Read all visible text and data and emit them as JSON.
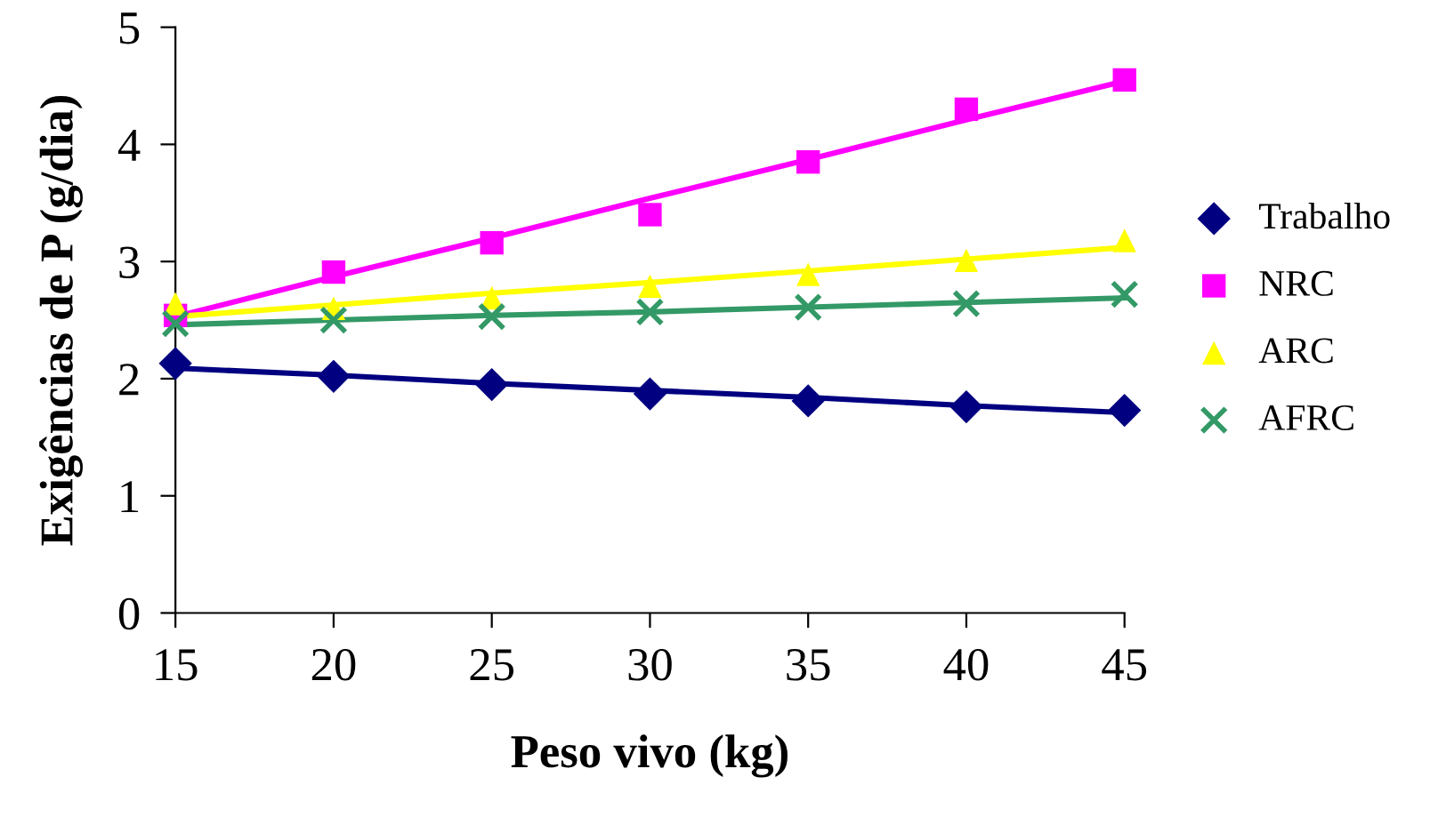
{
  "chart_data": {
    "type": "scatter",
    "xlabel": "Peso vivo (kg)",
    "ylabel": "Exigências de P (g/dia)",
    "x": [
      15,
      20,
      25,
      30,
      35,
      40,
      45
    ],
    "xlim": [
      15,
      45
    ],
    "xticks": [
      15,
      20,
      25,
      30,
      35,
      40,
      45
    ],
    "ylim": [
      0,
      5
    ],
    "yticks": [
      0,
      1,
      2,
      3,
      4,
      5
    ],
    "grid": false,
    "legend": "right",
    "series": [
      {
        "name": "Trabalho",
        "color": "#000080",
        "marker": "diamond",
        "values": [
          2.13,
          2.02,
          1.95,
          1.87,
          1.81,
          1.76,
          1.73
        ]
      },
      {
        "name": "NRC",
        "color": "#ff00ff",
        "marker": "square",
        "values": [
          2.54,
          2.91,
          3.16,
          3.4,
          3.85,
          4.3,
          4.55
        ]
      },
      {
        "name": "ARC",
        "color": "#ffff00",
        "marker": "triangle",
        "values": [
          2.64,
          2.6,
          2.69,
          2.79,
          2.89,
          3.01,
          3.18
        ]
      },
      {
        "name": "AFRC",
        "color": "#339966",
        "marker": "cross",
        "values": [
          2.47,
          2.5,
          2.53,
          2.57,
          2.61,
          2.64,
          2.72
        ]
      },
      {
        "type": "line",
        "color": "#000080",
        "marker": "none",
        "values": [
          2.09,
          2.03,
          1.96,
          1.9,
          1.84,
          1.77,
          1.71
        ]
      },
      {
        "type": "line",
        "color": "#ff00ff",
        "marker": "none",
        "values": [
          2.53,
          2.87,
          3.2,
          3.54,
          3.87,
          4.21,
          4.54
        ]
      },
      {
        "type": "line",
        "color": "#ffff00",
        "marker": "none",
        "values": [
          2.53,
          2.63,
          2.73,
          2.82,
          2.92,
          3.02,
          3.12
        ]
      },
      {
        "type": "line",
        "color": "#339966",
        "marker": "none",
        "values": [
          2.46,
          2.5,
          2.54,
          2.57,
          2.61,
          2.65,
          2.69
        ]
      }
    ]
  }
}
